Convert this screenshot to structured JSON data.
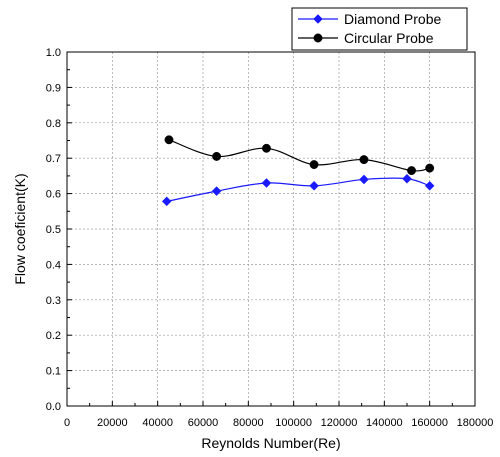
{
  "chart_data": {
    "type": "line",
    "title": "",
    "xlabel": "Reynolds Number(Re)",
    "ylabel": "Flow coeficient(K)",
    "xlim": [
      0,
      180000
    ],
    "ylim": [
      0.0,
      1.0
    ],
    "x_ticks": [
      0,
      20000,
      40000,
      60000,
      80000,
      100000,
      120000,
      140000,
      160000,
      180000
    ],
    "y_ticks": [
      0.0,
      0.1,
      0.2,
      0.3,
      0.4,
      0.5,
      0.6,
      0.7,
      0.8,
      0.9,
      1.0
    ],
    "x_tick_labels": [
      "0",
      "20000",
      "40000",
      "60000",
      "80000",
      "100000",
      "120000",
      "140000",
      "160000",
      "180000"
    ],
    "y_tick_labels": [
      "0.0",
      "0.1",
      "0.2",
      "0.3",
      "0.4",
      "0.5",
      "0.6",
      "0.7",
      "0.8",
      "0.9",
      "1.0"
    ],
    "grid": true,
    "legend_position": "top-right",
    "series": [
      {
        "name": "Diamond Probe",
        "color": "#1a1aff",
        "marker": "diamond",
        "x": [
          44000,
          66000,
          88000,
          109000,
          131000,
          150000,
          160000
        ],
        "y": [
          0.578,
          0.607,
          0.63,
          0.622,
          0.64,
          0.642,
          0.622
        ]
      },
      {
        "name": "Circular Probe",
        "color": "#000000",
        "marker": "circle",
        "x": [
          45000,
          66000,
          88000,
          109000,
          131000,
          152000,
          160000
        ],
        "y": [
          0.752,
          0.705,
          0.728,
          0.682,
          0.696,
          0.665,
          0.672
        ]
      }
    ]
  }
}
